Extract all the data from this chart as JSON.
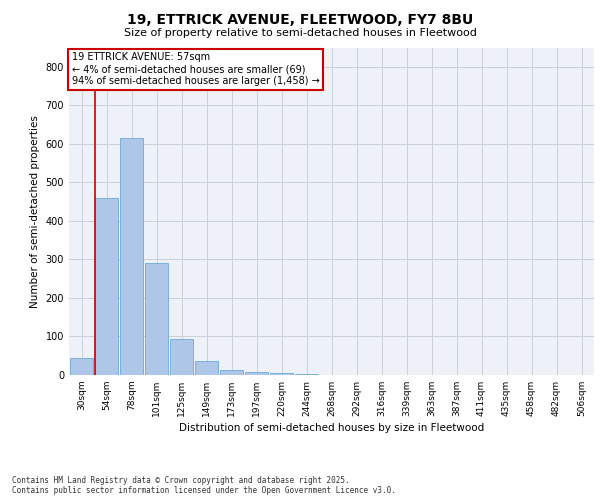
{
  "title_line1": "19, ETTRICK AVENUE, FLEETWOOD, FY7 8BU",
  "title_line2": "Size of property relative to semi-detached houses in Fleetwood",
  "xlabel": "Distribution of semi-detached houses by size in Fleetwood",
  "ylabel": "Number of semi-detached properties",
  "categories": [
    "30sqm",
    "54sqm",
    "78sqm",
    "101sqm",
    "125sqm",
    "149sqm",
    "173sqm",
    "197sqm",
    "220sqm",
    "244sqm",
    "268sqm",
    "292sqm",
    "316sqm",
    "339sqm",
    "363sqm",
    "387sqm",
    "411sqm",
    "435sqm",
    "458sqm",
    "482sqm",
    "506sqm"
  ],
  "values": [
    45,
    460,
    615,
    290,
    93,
    36,
    13,
    7,
    5,
    2,
    0,
    0,
    0,
    0,
    0,
    0,
    0,
    0,
    0,
    0,
    0
  ],
  "bar_color": "#aec6e8",
  "bar_edge_color": "#5a9fd4",
  "grid_color": "#c8d0dc",
  "background_color": "#eef2f8",
  "red_line_index": 1,
  "annotation_text": "19 ETTRICK AVENUE: 57sqm\n← 4% of semi-detached houses are smaller (69)\n94% of semi-detached houses are larger (1,458) →",
  "annotation_box_color": "#ffffff",
  "annotation_box_edge": "#cc0000",
  "ylim": [
    0,
    850
  ],
  "yticks": [
    0,
    100,
    200,
    300,
    400,
    500,
    600,
    700,
    800
  ],
  "footer_line1": "Contains HM Land Registry data © Crown copyright and database right 2025.",
  "footer_line2": "Contains public sector information licensed under the Open Government Licence v3.0."
}
